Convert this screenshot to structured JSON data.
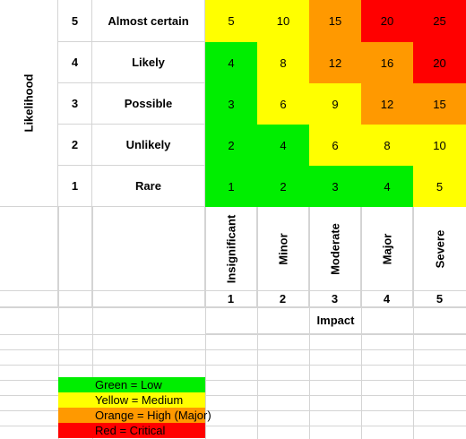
{
  "axis": {
    "y_title": "Likelihood",
    "x_title": "Impact"
  },
  "likelihood": [
    {
      "num": "5",
      "label": "Almost certain"
    },
    {
      "num": "4",
      "label": "Likely"
    },
    {
      "num": "3",
      "label": "Possible"
    },
    {
      "num": "2",
      "label": "Unlikely"
    },
    {
      "num": "1",
      "label": "Rare"
    }
  ],
  "impact": [
    {
      "label": "Insignificant",
      "num": "1"
    },
    {
      "label": "Minor",
      "num": "2"
    },
    {
      "label": "Moderate",
      "num": "3"
    },
    {
      "label": "Major",
      "num": "4"
    },
    {
      "label": "Severe",
      "num": "5"
    }
  ],
  "colors": {
    "green": "#00ee00",
    "yellow": "#ffff00",
    "orange": "#ff9900",
    "red": "#ff0000"
  },
  "matrix": [
    [
      {
        "v": "5",
        "c": "yellow"
      },
      {
        "v": "10",
        "c": "yellow"
      },
      {
        "v": "15",
        "c": "orange"
      },
      {
        "v": "20",
        "c": "red"
      },
      {
        "v": "25",
        "c": "red"
      }
    ],
    [
      {
        "v": "4",
        "c": "green"
      },
      {
        "v": "8",
        "c": "yellow"
      },
      {
        "v": "12",
        "c": "orange"
      },
      {
        "v": "16",
        "c": "orange"
      },
      {
        "v": "20",
        "c": "red"
      }
    ],
    [
      {
        "v": "3",
        "c": "green"
      },
      {
        "v": "6",
        "c": "yellow"
      },
      {
        "v": "9",
        "c": "yellow"
      },
      {
        "v": "12",
        "c": "orange"
      },
      {
        "v": "15",
        "c": "orange"
      }
    ],
    [
      {
        "v": "2",
        "c": "green"
      },
      {
        "v": "4",
        "c": "green"
      },
      {
        "v": "6",
        "c": "yellow"
      },
      {
        "v": "8",
        "c": "yellow"
      },
      {
        "v": "10",
        "c": "yellow"
      }
    ],
    [
      {
        "v": "1",
        "c": "green"
      },
      {
        "v": "2",
        "c": "green"
      },
      {
        "v": "3",
        "c": "green"
      },
      {
        "v": "4",
        "c": "green"
      },
      {
        "v": "5",
        "c": "yellow"
      }
    ]
  ],
  "legend": [
    {
      "c": "green",
      "text": "Green = Low"
    },
    {
      "c": "yellow",
      "text": "Yellow = Medium"
    },
    {
      "c": "orange",
      "text": "Orange = High (Major)"
    },
    {
      "c": "red",
      "text": "Red = Critical"
    }
  ]
}
